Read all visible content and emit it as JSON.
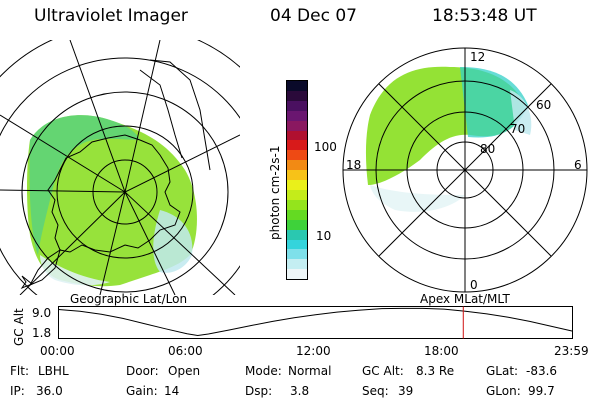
{
  "header": {
    "instrument": "Ultraviolet Imager",
    "date": "04 Dec 07",
    "time": "18:53:48 UT"
  },
  "left_panel": {
    "label": "Geographic Lat/Lon"
  },
  "right_panel": {
    "label": "Apex MLat/MLT",
    "mlt_labels": {
      "top": "12",
      "left": "18",
      "right": "6",
      "bottom": "0"
    },
    "mlat_labels": [
      "60",
      "70",
      "80"
    ]
  },
  "colorbar": {
    "unit_label": "photon cm-2s-1",
    "ticks": [
      "100",
      "10"
    ],
    "colors": [
      "#0a0a2a",
      "#2a0a3a",
      "#4a1060",
      "#6a1670",
      "#8a1860",
      "#b01030",
      "#d81a1a",
      "#ee4a14",
      "#f28a14",
      "#f7c218",
      "#eaf01a",
      "#c4ec1a",
      "#94e41c",
      "#64da22",
      "#3ed23a",
      "#2ac8b0",
      "#34d4dc",
      "#7ee0ea",
      "#c4eef2",
      "#eef6f8"
    ]
  },
  "altitude_plot": {
    "ylabel": "GC Alt",
    "yticks": [
      "9.0",
      "1.8"
    ],
    "xticks": [
      "00:00",
      "06:00",
      "12:00",
      "18:00",
      "23:59"
    ],
    "curve": {
      "hours": [
        0,
        1,
        2,
        3,
        4,
        5,
        6,
        6.5,
        7,
        8,
        9,
        10,
        11,
        12,
        13,
        14,
        15,
        16,
        17,
        18,
        19,
        20,
        21,
        22,
        23,
        24
      ],
      "alt": [
        8.8,
        8.3,
        7.5,
        6.4,
        5.0,
        3.6,
        2.3,
        1.8,
        2.2,
        3.3,
        4.5,
        5.6,
        6.6,
        7.4,
        8.1,
        8.6,
        9.0,
        9.1,
        9.1,
        8.9,
        8.3,
        7.6,
        6.7,
        5.6,
        4.3,
        3.0
      ]
    },
    "current_time_hours": 18.9
  },
  "status": {
    "flt_label": "Flt:",
    "flt_value": "LBHL",
    "ip_label": "IP:",
    "ip_value": "36.0",
    "door_label": "Door:",
    "door_value": "Open",
    "gain_label": "Gain:",
    "gain_value": "14",
    "mode_label": "Mode:",
    "mode_value": "Normal",
    "dsp_label": "Dsp:",
    "dsp_value": "3.8",
    "gcalt_label": "GC Alt:",
    "gcalt_value": "8.3 Re",
    "seq_label": "Seq:",
    "seq_value": "39",
    "glat_label": "GLat:",
    "glat_value": "-83.6",
    "glon_label": "GLon:",
    "glon_value": "99.7"
  }
}
